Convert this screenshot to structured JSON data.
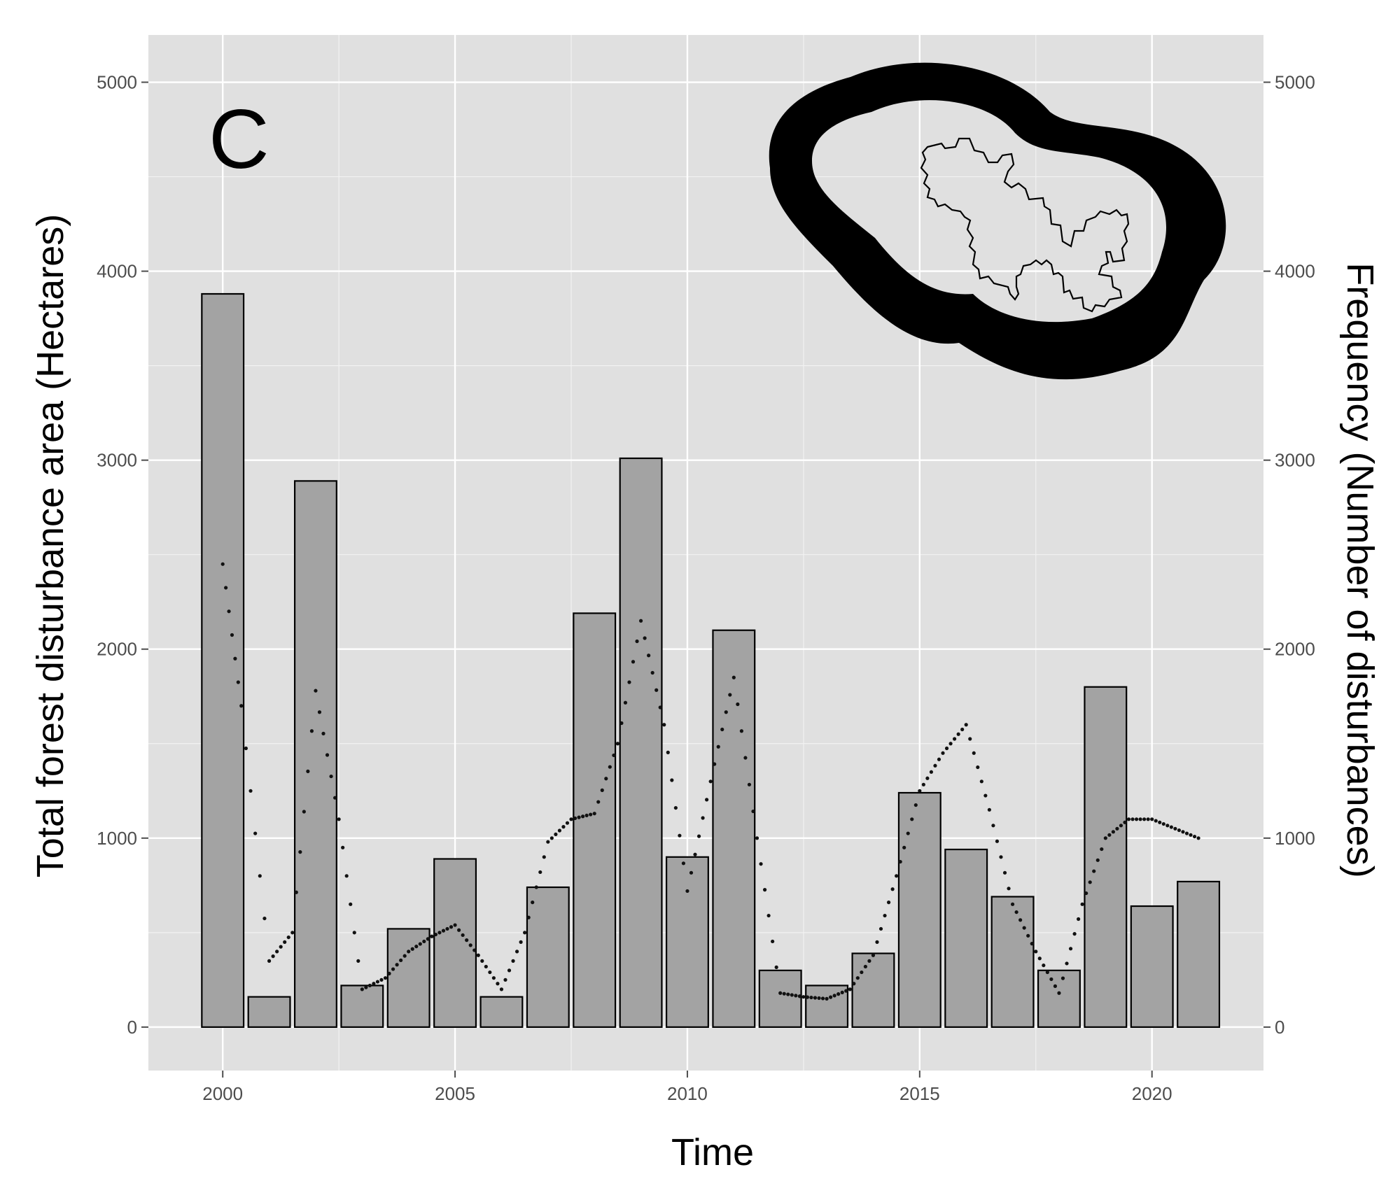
{
  "panel_label": "C",
  "chart_data": {
    "type": "bar",
    "panel_label": "C",
    "xlabel": "Time",
    "ylabel": "Total forest disturbance area (Hectares)",
    "y2label": "Frequency (Number of disturbances)",
    "x_ticks": [
      "2000",
      "2005",
      "2010",
      "2015",
      "2020"
    ],
    "y_ticks": [
      "0",
      "1000",
      "2000",
      "3000",
      "4000",
      "5000"
    ],
    "y2_ticks": [
      "0",
      "1000",
      "2000",
      "3000",
      "4000",
      "5000"
    ],
    "xlim": [
      1998.4,
      2022.4
    ],
    "ylim": [
      -230,
      5250
    ],
    "grid": true,
    "inset": "study area outline map with buffer zone",
    "bars": {
      "x": [
        2000,
        2001,
        2002,
        2003,
        2004,
        2005,
        2006,
        2007,
        2008,
        2009,
        2010,
        2011,
        2012,
        2013,
        2014,
        2015,
        2016,
        2017,
        2018,
        2019,
        2020,
        2021
      ],
      "values": [
        3880,
        160,
        2890,
        220,
        520,
        890,
        160,
        740,
        2190,
        3010,
        900,
        2100,
        300,
        220,
        390,
        1240,
        940,
        690,
        300,
        1800,
        640,
        770
      ]
    },
    "frequency_line": {
      "style": "dotted",
      "x": [
        2000,
        2000.4,
        2001,
        2001.5,
        2002,
        2002.5,
        2003,
        2003.5,
        2004,
        2004.5,
        2005,
        2005.5,
        2006,
        2006.5,
        2007,
        2007.5,
        2008,
        2008.5,
        2009,
        2009.5,
        2010,
        2010.5,
        2011,
        2011.5,
        2012,
        2012.5,
        2013,
        2013.5,
        2014,
        2014.5,
        2015,
        2015.5,
        2016,
        2016.5,
        2017,
        2017.5,
        2018,
        2018.5,
        2019,
        2019.5,
        2020,
        2020.5,
        2021
      ],
      "values": [
        2450,
        1700,
        350,
        500,
        1780,
        1100,
        200,
        260,
        400,
        480,
        540,
        380,
        200,
        500,
        980,
        1100,
        1130,
        1500,
        2150,
        1600,
        720,
        1300,
        1850,
        1000,
        180,
        160,
        150,
        200,
        380,
        800,
        1250,
        1450,
        1600,
        1150,
        650,
        400,
        180,
        650,
        1000,
        1100,
        1100,
        1050,
        1000
      ]
    }
  }
}
